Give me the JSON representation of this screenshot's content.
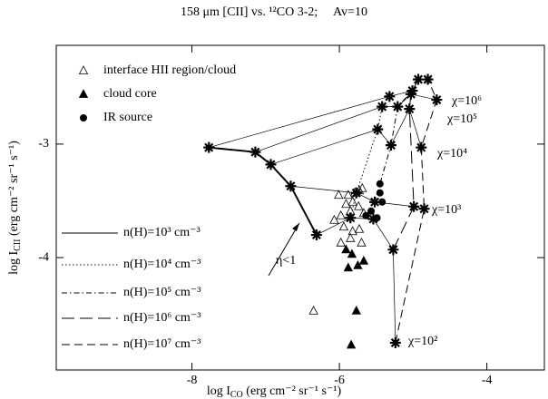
{
  "chart_data": {
    "type": "scatter",
    "title": "158 μm [CII] vs. ¹²CO 3-2;     Av=10",
    "xlabel": {
      "text": "log I",
      "sub": "CO",
      "unit": " (erg cm⁻² sr⁻¹ s⁻¹)"
    },
    "ylabel": {
      "text": "log I",
      "sub": "CII",
      "unit": " (erg cm⁻² sr⁻¹ s⁻¹)"
    },
    "xlim": [
      -9.84,
      -3.22
    ],
    "ylim": [
      -4.99,
      -2.13
    ],
    "xticks": [
      -8,
      -6,
      -4
    ],
    "yticks": [
      -4,
      -3
    ],
    "annotation": "η<1",
    "chi_labels": [
      "χ=10²",
      "χ=10³",
      "χ=10⁴",
      "χ=10⁵",
      "χ=10⁶"
    ],
    "series": [
      {
        "name": "n(H)=10³ cm⁻³",
        "dash": "solid",
        "color": "#000",
        "x": [
          -6.31,
          -6.66,
          -6.93,
          -7.14,
          -7.77
        ],
        "values": [
          -3.8,
          -3.37,
          -3.18,
          -3.07,
          -3.03
        ]
      },
      {
        "name": "n(H)=10⁴ cm⁻³",
        "dash": "dotted",
        "color": "#000",
        "x": [
          -5.85,
          -5.77,
          -5.48,
          -5.42,
          -5.32
        ],
        "values": [
          -3.65,
          -3.43,
          -2.87,
          -2.67,
          -2.58
        ]
      },
      {
        "name": "n(H)=10⁵ cm⁻³",
        "dash": "dashdot",
        "color": "#000",
        "x": [
          -5.54,
          -5.52,
          -5.3,
          -5.21,
          -5.01
        ],
        "values": [
          -3.66,
          -3.51,
          -3.01,
          -2.67,
          -2.53
        ]
      },
      {
        "name": "n(H)=10⁶ cm⁻³",
        "dash": "longdash",
        "color": "#000",
        "x": [
          -5.27,
          -4.99,
          -5.05,
          -5.03,
          -4.93
        ],
        "values": [
          -3.93,
          -3.55,
          -2.69,
          -2.56,
          -2.43
        ]
      },
      {
        "name": "n(H)=10⁷ cm⁻³",
        "dash": "dashed",
        "color": "#000",
        "x": [
          -5.24,
          -4.85,
          -4.89,
          -4.68,
          -4.8
        ],
        "values": [
          -4.75,
          -3.57,
          -3.03,
          -2.61,
          -2.43
        ]
      }
    ],
    "observations": [
      {
        "name": "interface HII region/cloud",
        "marker": "open-triangle",
        "color": "#000",
        "x": [
          -6.01,
          -5.88,
          -5.79,
          -5.73,
          -5.69,
          -5.91,
          -5.82,
          -5.74,
          -6.07,
          -5.98,
          -5.85,
          -5.67,
          -5.94,
          -5.82,
          -5.73,
          -5.98,
          -5.85,
          -5.7,
          -6.35
        ],
        "values": [
          -3.45,
          -3.45,
          -3.43,
          -3.41,
          -3.39,
          -3.53,
          -3.51,
          -3.55,
          -3.67,
          -3.63,
          -3.59,
          -3.61,
          -3.73,
          -3.77,
          -3.75,
          -3.87,
          -3.83,
          -3.87,
          -4.47
        ]
      },
      {
        "name": "cloud core",
        "marker": "filled-triangle",
        "color": "#000",
        "x": [
          -5.91,
          -5.83,
          -5.75,
          -5.67,
          -5.88,
          -5.77,
          -5.84
        ],
        "values": [
          -3.93,
          -3.97,
          -4.07,
          -4.03,
          -4.09,
          -4.47,
          -4.77
        ]
      },
      {
        "name": "IR source",
        "marker": "circle",
        "color": "#000",
        "x": [
          -5.45,
          -5.45,
          -5.42,
          -5.57,
          -5.49,
          -5.64
        ],
        "values": [
          -3.35,
          -3.43,
          -3.51,
          -3.59,
          -3.65,
          -3.63
        ]
      }
    ]
  }
}
